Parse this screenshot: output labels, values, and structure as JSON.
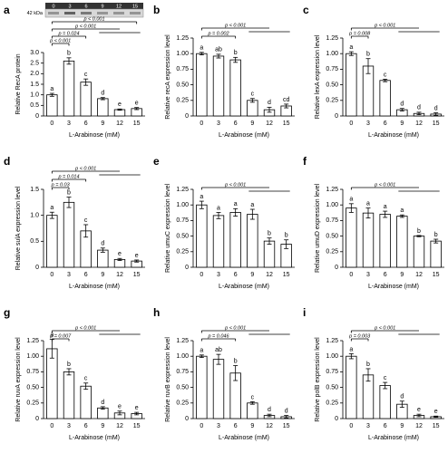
{
  "chart_data": [
    {
      "type": "bar",
      "panel_label": "a",
      "y_label": "Relative RecA protein",
      "x_label": "L-Arabinose (mM)",
      "blot": {
        "marker": "42 kDa",
        "lanes": [
          "0",
          "3",
          "6",
          "9",
          "12",
          "15"
        ]
      },
      "categories": [
        "0",
        "3",
        "6",
        "9",
        "12",
        "15"
      ],
      "values": [
        1.0,
        2.6,
        1.6,
        0.82,
        0.3,
        0.35
      ],
      "errors": [
        0.07,
        0.15,
        0.15,
        0.05,
        0.03,
        0.05
      ],
      "letters": [
        "a",
        "b",
        "c",
        "d",
        "e",
        "e"
      ],
      "annotations": [
        "p < 0.001",
        "p = 0.024",
        "p < 0.001",
        "p < 0.001"
      ],
      "color": "#ffffff",
      "ylim": [
        0,
        3
      ],
      "yticks": [
        0,
        0.5,
        {
          "value": 1,
          "label": "1.0"
        },
        1.5,
        {
          "value": 2,
          "label": "2.0"
        },
        2.5,
        {
          "value": 3,
          "label": "3.0"
        }
      ]
    },
    {
      "type": "bar",
      "panel_label": "b",
      "y_label": "Relative recA expression level",
      "x_label": "L-Arabinose (mM)",
      "categories": [
        "0",
        "3",
        "6",
        "9",
        "12",
        "15"
      ],
      "values": [
        1.0,
        0.96,
        0.9,
        0.25,
        0.1,
        0.16
      ],
      "errors": [
        0.02,
        0.03,
        0.04,
        0.03,
        0.04,
        0.03
      ],
      "letters": [
        "a",
        "ab",
        "b",
        "c",
        "d",
        "cd"
      ],
      "annotations": [
        "p = 0.002",
        "p < 0.001"
      ],
      "color": "#ffffff",
      "ylim": [
        0,
        1.25
      ],
      "yticks": [
        0,
        0.25,
        {
          "value": 0.5,
          "label": "0.50"
        },
        0.75,
        {
          "value": 1,
          "label": "1.00"
        },
        1.25
      ]
    },
    {
      "type": "bar",
      "panel_label": "c",
      "y_label": "Relative lexA expression level",
      "x_label": "L-Arabinose (mM)",
      "categories": [
        "0",
        "3",
        "6",
        "9",
        "12",
        "15"
      ],
      "values": [
        1.0,
        0.8,
        0.57,
        0.1,
        0.04,
        0.03
      ],
      "errors": [
        0.03,
        0.12,
        0.02,
        0.02,
        0.02,
        0.02
      ],
      "letters": [
        "a",
        "b",
        "c",
        "d",
        "d",
        "d"
      ],
      "annotations": [
        "p = 0.008",
        "p < 0.001"
      ],
      "color": "#ffffff",
      "ylim": [
        0,
        1.25
      ],
      "yticks": [
        0,
        0.25,
        {
          "value": 0.5,
          "label": "0.50"
        },
        0.75,
        {
          "value": 1,
          "label": "1.00"
        },
        1.25
      ]
    },
    {
      "type": "bar",
      "panel_label": "d",
      "y_label": "Relative sulA expression level",
      "x_label": "L-Arabinose (mM)",
      "categories": [
        "0",
        "3",
        "6",
        "9",
        "12",
        "15"
      ],
      "values": [
        1.0,
        1.25,
        0.7,
        0.33,
        0.15,
        0.12
      ],
      "errors": [
        0.06,
        0.1,
        0.12,
        0.04,
        0.02,
        0.02
      ],
      "letters": [
        "a",
        "b",
        "c",
        "d",
        "e",
        "e"
      ],
      "annotations": [
        "p = 0.03",
        "p = 0.014",
        "p < 0.001"
      ],
      "color": "#ffffff",
      "ylim": [
        0,
        1.5
      ],
      "yticks": [
        0,
        0.5,
        {
          "value": 1,
          "label": "1.0"
        },
        1.5
      ]
    },
    {
      "type": "bar",
      "panel_label": "e",
      "y_label": "Relative umuC expression level",
      "x_label": "L-Arabinose (mM)",
      "categories": [
        "0",
        "3",
        "6",
        "9",
        "12",
        "15"
      ],
      "values": [
        1.0,
        0.83,
        0.88,
        0.85,
        0.42,
        0.37
      ],
      "errors": [
        0.06,
        0.05,
        0.06,
        0.08,
        0.05,
        0.07
      ],
      "letters": [
        "a",
        "a",
        "a",
        "a",
        "b",
        "b"
      ],
      "annotations": [
        "p < 0.001"
      ],
      "color": "#ffffff",
      "ylim": [
        0,
        1.25
      ],
      "yticks": [
        0,
        0.25,
        {
          "value": 0.5,
          "label": "0.50"
        },
        0.75,
        {
          "value": 1,
          "label": "1.00"
        },
        1.25
      ]
    },
    {
      "type": "bar",
      "panel_label": "f",
      "y_label": "Relative umuD expression level",
      "x_label": "L-Arabinose (mM)",
      "categories": [
        "0",
        "3",
        "6",
        "9",
        "12",
        "15"
      ],
      "values": [
        0.95,
        0.87,
        0.85,
        0.82,
        0.5,
        0.42
      ],
      "errors": [
        0.07,
        0.08,
        0.05,
        0.02,
        0.01,
        0.03
      ],
      "letters": [
        "a",
        "a",
        "a",
        "a",
        "b",
        "b"
      ],
      "annotations": [
        "p < 0.001"
      ],
      "color": "#ffffff",
      "ylim": [
        0,
        1.25
      ],
      "yticks": [
        0,
        0.25,
        {
          "value": 0.5,
          "label": "0.50"
        },
        0.75,
        {
          "value": 1,
          "label": "1.00"
        },
        1.25
      ]
    },
    {
      "type": "bar",
      "panel_label": "g",
      "y_label": "Relative ruvA expression level",
      "x_label": "L-Arabinose (mM)",
      "categories": [
        "0",
        "3",
        "6",
        "9",
        "12",
        "15"
      ],
      "values": [
        1.12,
        0.75,
        0.52,
        0.17,
        0.09,
        0.08
      ],
      "errors": [
        0.15,
        0.05,
        0.05,
        0.02,
        0.03,
        0.02
      ],
      "letters": [
        "a",
        "b",
        "c",
        "d",
        "e",
        "e"
      ],
      "annotations": [
        "p = 0.007",
        "p < 0.001"
      ],
      "color": "#ffffff",
      "ylim": [
        0,
        1.25
      ],
      "yticks": [
        0,
        0.25,
        {
          "value": 0.5,
          "label": "0.50"
        },
        0.75,
        {
          "value": 1,
          "label": "1.00"
        },
        1.25
      ]
    },
    {
      "type": "bar",
      "panel_label": "h",
      "y_label": "Relative ruvB expression level",
      "x_label": "L-Arabinose (mM)",
      "categories": [
        "0",
        "3",
        "6",
        "9",
        "12",
        "15"
      ],
      "values": [
        1.0,
        0.95,
        0.73,
        0.25,
        0.05,
        0.03
      ],
      "errors": [
        0.02,
        0.08,
        0.12,
        0.02,
        0.02,
        0.02
      ],
      "letters": [
        "a",
        "ab",
        "b",
        "c",
        "d",
        "d"
      ],
      "annotations": [
        "p = 0.046",
        "p < 0.001"
      ],
      "color": "#ffffff",
      "ylim": [
        0,
        1.25
      ],
      "yticks": [
        0,
        0.25,
        {
          "value": 0.5,
          "label": "0.50"
        },
        0.75,
        {
          "value": 1,
          "label": "1.00"
        },
        1.25
      ]
    },
    {
      "type": "bar",
      "panel_label": "i",
      "y_label": "Relative polB expression level",
      "x_label": "L-Arabinose (mM)",
      "categories": [
        "0",
        "3",
        "6",
        "9",
        "12",
        "15"
      ],
      "values": [
        1.0,
        0.7,
        0.53,
        0.23,
        0.05,
        0.03
      ],
      "errors": [
        0.04,
        0.1,
        0.05,
        0.05,
        0.02,
        0.01
      ],
      "letters": [
        "a",
        "b",
        "c",
        "d",
        "e",
        "e"
      ],
      "annotations": [
        "p = 0.003",
        "p < 0.001"
      ],
      "color": "#ffffff",
      "ylim": [
        0,
        1.25
      ],
      "yticks": [
        0,
        0.25,
        {
          "value": 0.5,
          "label": "0.50"
        },
        0.75,
        {
          "value": 1,
          "label": "1.00"
        },
        1.25
      ]
    }
  ]
}
